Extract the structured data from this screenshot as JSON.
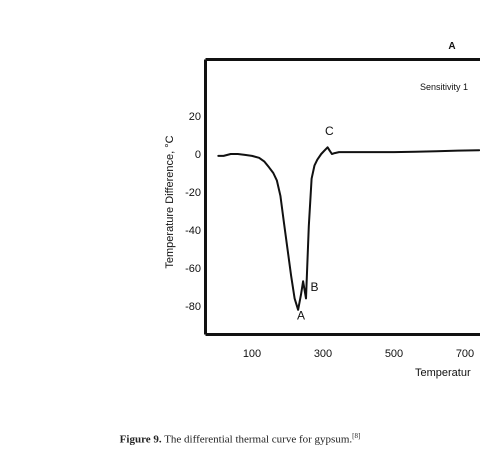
{
  "chart_data": {
    "type": "line",
    "panel_label": "A",
    "annotation": "Sensitivity 1",
    "ylabel": "Temperature Difference, °C",
    "xlabel": "Temperatur",
    "xlim": [
      -10,
      740
    ],
    "ylim": [
      -92,
      48
    ],
    "x_ticks": [
      100,
      300,
      500,
      700
    ],
    "y_ticks": [
      20,
      0,
      -20,
      -40,
      -60,
      -80
    ],
    "x_tick_labels": [
      "100",
      "300",
      "500",
      "700"
    ],
    "y_tick_labels": [
      "20",
      "0",
      "-20",
      "-40",
      "-60",
      "-80"
    ],
    "grid": false,
    "legend": "none",
    "series": [
      {
        "color": "#111111",
        "x": [
          5,
          20,
          40,
          60,
          80,
          100,
          120,
          135,
          148,
          160,
          170,
          180,
          190,
          200,
          210,
          220,
          230,
          238,
          244,
          252,
          260,
          268,
          276,
          284,
          295,
          305,
          313,
          318,
          325,
          333,
          345,
          365,
          390,
          420,
          460,
          500,
          560,
          620,
          680,
          740
        ],
        "y": [
          -1,
          -1,
          0,
          0,
          -0.5,
          -1,
          -2,
          -4,
          -7,
          -10,
          -14,
          -22,
          -36,
          -50,
          -64,
          -76,
          -82,
          -74,
          -67,
          -76,
          -38,
          -13,
          -6,
          -3,
          0,
          2,
          3.5,
          2,
          0,
          0.5,
          1,
          1,
          1,
          1,
          1,
          1,
          1.2,
          1.5,
          1.8,
          2
        ]
      }
    ],
    "point_labels": [
      {
        "text": "A",
        "x": 238,
        "y": -87
      },
      {
        "text": "B",
        "x": 276,
        "y": -72
      },
      {
        "text": "C",
        "x": 318,
        "y": 10
      }
    ]
  },
  "caption": {
    "bold": "Figure 9.",
    "text": " The differential thermal curve for gypsum.",
    "ref": "[8]"
  }
}
